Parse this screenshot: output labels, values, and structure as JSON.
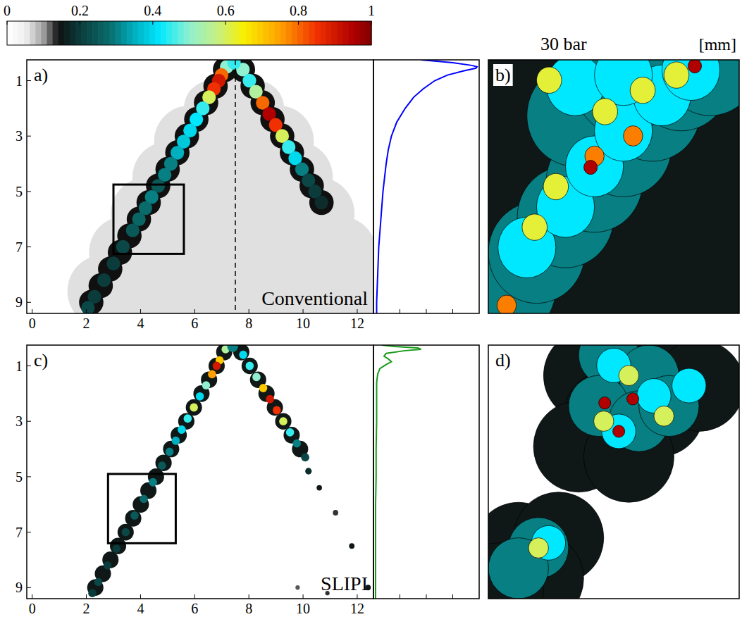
{
  "chart_data": [
    {
      "type": "colorbar",
      "xlim": [
        0,
        1
      ],
      "xticks": [
        0,
        0.2,
        0.4,
        0.6,
        0.8,
        1
      ]
    },
    {
      "type": "image",
      "label": "a)",
      "annotation": "Conventional",
      "xlim": [
        -0.2,
        12.6
      ],
      "ylim": [
        0.25,
        9.4
      ],
      "xticks": [
        0,
        2,
        4,
        6,
        8,
        10,
        12
      ],
      "yticks": [
        1,
        3,
        5,
        7,
        9
      ],
      "center_x": 7.5,
      "zoom_box": {
        "x": [
          3.0,
          5.6
        ],
        "y": [
          4.75,
          7.25
        ]
      },
      "background": 0,
      "blobs": {
        "x": [
          7.4,
          6.6,
          8.3,
          5.8,
          7.4,
          9.1,
          5.0,
          6.5,
          8.2,
          9.8,
          4.2,
          5.8,
          7.4,
          9.0,
          10.6,
          3.4,
          5.0,
          6.6,
          8.2,
          9.8,
          11.4,
          2.6,
          4.2,
          5.8,
          7.4,
          9.0,
          10.6,
          12.2,
          7.12,
          6.77,
          6.42,
          6.06,
          5.71,
          5.36,
          5.0,
          4.65,
          4.3,
          3.94,
          3.59,
          3.24,
          2.88,
          2.53,
          2.18,
          7.78,
          8.14,
          8.51,
          8.87,
          9.23,
          9.59,
          9.96,
          10.32,
          10.68,
          7.18,
          6.99,
          6.89,
          6.71,
          6.53,
          6.3,
          6.06,
          5.83,
          5.59,
          5.36,
          5.12,
          4.89,
          4.65,
          4.41,
          4.18,
          3.94,
          3.71,
          3.35,
          3.0,
          2.65,
          2.3,
          2.06,
          7.78,
          8.02,
          8.26,
          8.51,
          8.75,
          8.99,
          9.23,
          9.47,
          9.71,
          9.96,
          10.2,
          10.44,
          10.68,
          7.45
        ],
        "y": [
          1.0,
          2.0,
          2.0,
          3.2,
          3.0,
          3.2,
          4.5,
          4.5,
          4.5,
          4.5,
          5.8,
          5.8,
          5.8,
          5.8,
          5.8,
          7.2,
          7.2,
          7.2,
          7.2,
          7.2,
          7.2,
          8.6,
          8.6,
          8.6,
          8.6,
          8.6,
          8.6,
          8.6,
          0.6,
          1.2,
          1.8,
          2.4,
          3.0,
          3.6,
          4.2,
          4.8,
          5.4,
          6.0,
          6.6,
          7.2,
          7.8,
          8.4,
          9.0,
          0.6,
          1.2,
          1.8,
          2.4,
          3.0,
          3.6,
          4.2,
          4.8,
          5.4,
          0.5,
          0.8,
          1.0,
          1.3,
          1.6,
          2.0,
          2.4,
          2.8,
          3.2,
          3.6,
          4.0,
          4.4,
          4.8,
          5.2,
          5.6,
          6.0,
          6.4,
          7.0,
          7.6,
          8.2,
          8.8,
          9.2,
          0.6,
          1.0,
          1.4,
          1.8,
          2.2,
          2.6,
          3.0,
          3.4,
          3.8,
          4.2,
          4.6,
          5.0,
          5.4,
          0.35
        ],
        "values": [
          0.06,
          0.06,
          0.06,
          0.06,
          0.06,
          0.06,
          0.06,
          0.06,
          0.06,
          0.06,
          0.06,
          0.06,
          0.06,
          0.06,
          0.06,
          0.06,
          0.06,
          0.06,
          0.06,
          0.06,
          0.06,
          0.06,
          0.06,
          0.06,
          0.06,
          0.06,
          0.06,
          0.06,
          0.14,
          0.14,
          0.14,
          0.14,
          0.14,
          0.14,
          0.14,
          0.14,
          0.14,
          0.14,
          0.14,
          0.14,
          0.14,
          0.14,
          0.14,
          0.14,
          0.14,
          0.14,
          0.14,
          0.14,
          0.14,
          0.14,
          0.14,
          0.14,
          0.5,
          0.8,
          0.9,
          0.85,
          0.6,
          0.45,
          0.42,
          0.4,
          0.38,
          0.35,
          0.3,
          0.3,
          0.25,
          0.3,
          0.28,
          0.27,
          0.25,
          0.22,
          0.2,
          0.2,
          0.2,
          0.22,
          0.5,
          0.45,
          0.55,
          0.8,
          0.95,
          0.85,
          0.6,
          0.45,
          0.4,
          0.3,
          0.22,
          0.2,
          0.18,
          0.45
        ],
        "size": [
          0.7,
          1.0,
          1.0,
          1.3,
          1.3,
          1.3,
          1.3,
          1.3,
          1.3,
          1.3,
          1.3,
          1.3,
          1.3,
          1.3,
          1.3,
          1.3,
          1.3,
          1.3,
          1.3,
          1.3,
          1.3,
          1.3,
          1.3,
          1.3,
          1.3,
          1.3,
          1.3,
          1.3,
          0.45,
          0.45,
          0.45,
          0.45,
          0.45,
          0.45,
          0.45,
          0.45,
          0.45,
          0.45,
          0.45,
          0.45,
          0.45,
          0.45,
          0.45,
          0.45,
          0.45,
          0.45,
          0.45,
          0.45,
          0.45,
          0.45,
          0.45,
          0.45,
          0.25,
          0.25,
          0.25,
          0.25,
          0.25,
          0.25,
          0.25,
          0.25,
          0.25,
          0.25,
          0.25,
          0.25,
          0.25,
          0.25,
          0.25,
          0.25,
          0.25,
          0.25,
          0.25,
          0.25,
          0.25,
          0.25,
          0.25,
          0.25,
          0.25,
          0.25,
          0.25,
          0.25,
          0.25,
          0.25,
          0.25,
          0.25,
          0.25,
          0.25,
          0.25,
          0.25
        ]
      }
    },
    {
      "type": "line",
      "orientation": "horizontal",
      "color": "#0000ff",
      "xlim": [
        0,
        1
      ],
      "ylim": [
        0.25,
        9.4
      ],
      "xticks": [
        0.25,
        0.5,
        0.75
      ],
      "tick_labels": false,
      "y": [
        0.25,
        0.35,
        0.45,
        0.5,
        0.55,
        0.65,
        0.8,
        1.0,
        1.3,
        1.6,
        2.0,
        2.5,
        3.0,
        3.5,
        4.0,
        5.0,
        6.0,
        7.0,
        8.0,
        9.0,
        9.4
      ],
      "values": [
        0.45,
        0.75,
        0.93,
        0.98,
        0.97,
        0.85,
        0.7,
        0.58,
        0.47,
        0.38,
        0.3,
        0.22,
        0.17,
        0.14,
        0.12,
        0.09,
        0.07,
        0.05,
        0.04,
        0.03,
        0.03
      ]
    },
    {
      "type": "contour",
      "label": "b)",
      "title": "30 bar",
      "annotation": "[mm]",
      "xlim": [
        3.0,
        5.6
      ],
      "ylim": [
        4.75,
        7.25
      ],
      "tick_labels": false,
      "background": 0.15,
      "blobs": {
        "x": [
          3.2,
          3.5,
          3.8,
          4.1,
          4.4,
          4.7,
          5.0,
          5.3,
          3.9,
          4.4,
          3.4,
          3.8,
          4.1,
          4.4,
          4.8,
          5.1,
          3.9,
          4.4,
          3.63,
          4.21,
          3.48,
          4.6,
          4.95,
          3.7,
          4.5,
          3.19,
          4.1,
          4.06,
          5.14
        ],
        "y": [
          7.0,
          6.65,
          6.3,
          5.95,
          5.6,
          5.25,
          4.95,
          4.8,
          5.3,
          5.0,
          6.6,
          6.2,
          5.8,
          5.45,
          5.1,
          4.85,
          5.0,
          4.9,
          4.95,
          5.26,
          6.4,
          5.05,
          4.9,
          6.0,
          5.5,
          7.17,
          5.7,
          5.81,
          4.81
        ],
        "values": [
          0.3,
          0.3,
          0.3,
          0.3,
          0.3,
          0.3,
          0.3,
          0.3,
          0.3,
          0.3,
          0.42,
          0.42,
          0.42,
          0.42,
          0.42,
          0.42,
          0.42,
          0.42,
          0.62,
          0.62,
          0.62,
          0.62,
          0.62,
          0.62,
          0.78,
          0.78,
          0.78,
          0.95,
          0.95
        ],
        "size": [
          0.5,
          0.5,
          0.5,
          0.5,
          0.5,
          0.5,
          0.5,
          0.5,
          0.5,
          0.5,
          0.3,
          0.3,
          0.3,
          0.3,
          0.3,
          0.3,
          0.3,
          0.3,
          0.13,
          0.13,
          0.13,
          0.13,
          0.13,
          0.13,
          0.1,
          0.1,
          0.1,
          0.07,
          0.07
        ]
      }
    },
    {
      "type": "image",
      "label": "c)",
      "annotation": "SLIPI",
      "xlim": [
        -0.2,
        12.6
      ],
      "ylim": [
        0.25,
        9.4
      ],
      "xticks": [
        0,
        2,
        4,
        6,
        8,
        10,
        12
      ],
      "yticks": [
        1,
        3,
        5,
        7,
        9
      ],
      "zoom_box": {
        "x": [
          2.8,
          5.3
        ],
        "y": [
          4.9,
          7.4
        ]
      },
      "background": 0,
      "blobs": {
        "x": [
          7.09,
          6.81,
          6.53,
          6.25,
          5.97,
          5.69,
          5.41,
          5.13,
          4.85,
          4.57,
          4.29,
          4.01,
          3.73,
          3.45,
          3.17,
          2.89,
          2.61,
          2.33,
          7.72,
          8.03,
          8.34,
          8.65,
          8.96,
          9.27,
          9.58,
          9.89,
          7.14,
          6.92,
          6.81,
          6.64,
          6.42,
          6.19,
          5.97,
          5.74,
          5.52,
          5.3,
          5.07,
          4.79,
          4.46,
          4.12,
          3.78,
          3.45,
          3.11,
          2.78,
          2.44,
          2.22,
          7.79,
          8.03,
          8.28,
          8.53,
          8.78,
          9.03,
          9.27,
          9.52,
          9.77,
          10.08,
          10.2,
          10.6,
          11.2,
          11.8,
          12.4,
          10.9,
          9.8,
          7.4
        ],
        "y": [
          0.5,
          1.0,
          1.5,
          2.0,
          2.5,
          3.0,
          3.5,
          4.0,
          4.5,
          5.0,
          5.5,
          6.0,
          6.5,
          7.0,
          7.5,
          8.0,
          8.5,
          9.0,
          0.5,
          1.0,
          1.5,
          2.0,
          2.5,
          3.0,
          3.5,
          4.0,
          0.4,
          0.8,
          1.0,
          1.3,
          1.7,
          2.1,
          2.5,
          2.9,
          3.3,
          3.7,
          4.1,
          4.6,
          5.2,
          5.8,
          6.4,
          7.0,
          7.6,
          8.2,
          8.8,
          9.2,
          0.6,
          1.0,
          1.4,
          1.8,
          2.2,
          2.6,
          3.0,
          3.4,
          3.8,
          4.3,
          4.8,
          5.4,
          6.3,
          7.5,
          9.0,
          9.2,
          9.0,
          0.3
        ],
        "values": [
          0.15,
          0.15,
          0.15,
          0.15,
          0.15,
          0.15,
          0.15,
          0.15,
          0.15,
          0.15,
          0.15,
          0.15,
          0.15,
          0.15,
          0.15,
          0.15,
          0.15,
          0.15,
          0.15,
          0.15,
          0.15,
          0.15,
          0.15,
          0.15,
          0.15,
          0.15,
          0.55,
          0.7,
          0.9,
          0.75,
          0.5,
          0.4,
          0.6,
          0.45,
          0.4,
          0.35,
          0.3,
          0.25,
          0.3,
          0.28,
          0.25,
          0.22,
          0.2,
          0.2,
          0.22,
          0.2,
          0.4,
          0.45,
          0.5,
          0.7,
          0.9,
          0.85,
          0.6,
          0.45,
          0.3,
          0.22,
          0.18,
          0.15,
          0.13,
          0.15,
          0.15,
          0.13,
          0.12,
          0.3
        ],
        "size": [
          0.3,
          0.3,
          0.3,
          0.3,
          0.3,
          0.3,
          0.3,
          0.3,
          0.3,
          0.3,
          0.3,
          0.3,
          0.3,
          0.3,
          0.3,
          0.3,
          0.3,
          0.3,
          0.3,
          0.3,
          0.3,
          0.3,
          0.3,
          0.3,
          0.3,
          0.3,
          0.15,
          0.15,
          0.15,
          0.15,
          0.15,
          0.15,
          0.15,
          0.15,
          0.15,
          0.15,
          0.15,
          0.15,
          0.15,
          0.15,
          0.15,
          0.15,
          0.15,
          0.15,
          0.15,
          0.15,
          0.15,
          0.15,
          0.15,
          0.15,
          0.15,
          0.15,
          0.15,
          0.15,
          0.15,
          0.15,
          0.12,
          0.1,
          0.1,
          0.1,
          0.1,
          0.08,
          0.08,
          0.2
        ]
      }
    },
    {
      "type": "line",
      "orientation": "horizontal",
      "color": "#1a9a1a",
      "xlim": [
        0,
        1
      ],
      "ylim": [
        0.25,
        9.4
      ],
      "xticks": [
        0.25,
        0.5,
        0.75
      ],
      "tick_labels": false,
      "y": [
        0.25,
        0.3,
        0.35,
        0.4,
        0.45,
        0.55,
        0.65,
        0.75,
        0.85,
        0.95,
        1.1,
        1.3,
        1.6,
        2.0,
        3.0,
        4.0,
        5.0,
        6.0,
        7.0,
        8.0,
        9.0,
        9.4
      ],
      "values": [
        0.08,
        0.2,
        0.42,
        0.45,
        0.3,
        0.12,
        0.1,
        0.14,
        0.17,
        0.12,
        0.06,
        0.04,
        0.03,
        0.03,
        0.03,
        0.025,
        0.025,
        0.02,
        0.02,
        0.02,
        0.02,
        0.02
      ]
    },
    {
      "type": "contour",
      "label": "d)",
      "xlim": [
        2.8,
        5.3
      ],
      "ylim": [
        4.9,
        7.4
      ],
      "tick_labels": false,
      "background": 0,
      "blobs": {
        "x": [
          3.8,
          4.2,
          4.6,
          4.0,
          4.5,
          4.9,
          3.7,
          4.2,
          3.1,
          3.5,
          3.3,
          2.9,
          4.0,
          4.4,
          3.9,
          4.3,
          4.6,
          3.3,
          3.1,
          4.05,
          4.45,
          4.1,
          3.4,
          4.8,
          4.2,
          3.95,
          4.55,
          3.3,
          3.96,
          4.24,
          4.1
        ],
        "y": [
          5.2,
          5.0,
          5.1,
          5.6,
          5.55,
          5.3,
          5.9,
          6.0,
          6.9,
          6.8,
          7.2,
          7.3,
          5.0,
          5.2,
          5.5,
          5.65,
          5.5,
          6.9,
          7.1,
          5.1,
          5.4,
          5.75,
          6.85,
          5.3,
          5.2,
          5.65,
          5.6,
          6.9,
          5.47,
          5.43,
          5.75
        ],
        "values": [
          0.15,
          0.15,
          0.15,
          0.15,
          0.15,
          0.15,
          0.15,
          0.15,
          0.15,
          0.15,
          0.15,
          0.15,
          0.3,
          0.3,
          0.3,
          0.3,
          0.3,
          0.3,
          0.3,
          0.42,
          0.42,
          0.42,
          0.42,
          0.42,
          0.6,
          0.6,
          0.6,
          0.6,
          0.95,
          0.95,
          0.95
        ],
        "size": [
          0.45,
          0.45,
          0.45,
          0.45,
          0.45,
          0.45,
          0.45,
          0.45,
          0.45,
          0.45,
          0.45,
          0.45,
          0.3,
          0.3,
          0.3,
          0.3,
          0.3,
          0.3,
          0.3,
          0.17,
          0.17,
          0.17,
          0.17,
          0.17,
          0.1,
          0.1,
          0.1,
          0.1,
          0.06,
          0.06,
          0.06
        ]
      }
    }
  ]
}
